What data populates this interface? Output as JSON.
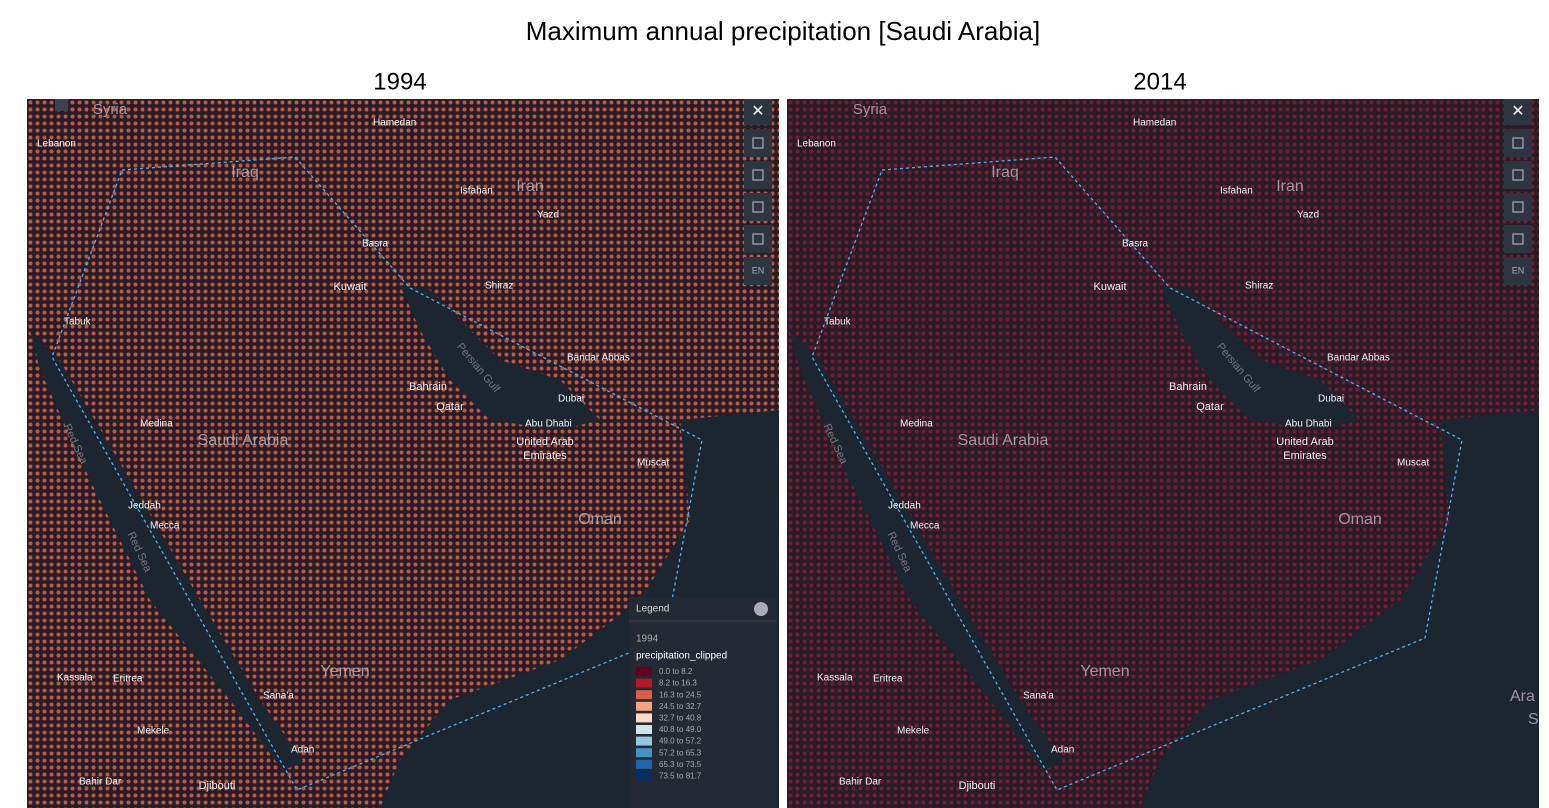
{
  "title": "Maximum annual precipitation [Saudi Arabia]",
  "panels": [
    {
      "year": "1994",
      "dots": "#b85a48"
    },
    {
      "year": "2014",
      "dots": "#6e1f33"
    }
  ],
  "places": [
    "Syria",
    "Hamedan",
    "Lebanon",
    "Iraq",
    "Isfahan",
    "Iran",
    "Yazd",
    "Basra",
    "Kuwait",
    "Shiraz",
    "Tabuk",
    "Persian Gulf",
    "Bandar Abbas",
    "Bahrain",
    "Qatar",
    "Dubai",
    "Medina",
    "Abu Dhabi",
    "Saudi Arabia",
    "United Arab",
    "Emirates",
    "Muscat",
    "Jeddah",
    "Oman",
    "Mecca",
    "Red Sea",
    "Red Sea",
    "Yemen",
    "Kassala",
    "Eritrea",
    "Sana'a",
    "Mekele",
    "Adan",
    "Bahir Dar",
    "Djibouti"
  ],
  "edge_labels": [
    "Ara",
    "S"
  ],
  "controls": {
    "close": "✕",
    "language": "EN"
  },
  "legend": {
    "title": "Legend",
    "layer": "1994",
    "field": "precipitation_clipped",
    "items": [
      {
        "label": "0.0 to 8.2",
        "color": "#67001f"
      },
      {
        "label": "8.2 to 16.3",
        "color": "#b2182b"
      },
      {
        "label": "16.3 to 24.5",
        "color": "#d6604d"
      },
      {
        "label": "24.5 to 32.7",
        "color": "#f4a582"
      },
      {
        "label": "32.7 to 40.8",
        "color": "#fddbc7"
      },
      {
        "label": "40.8 to 49.0",
        "color": "#d1e5f0"
      },
      {
        "label": "49.0 to 57.2",
        "color": "#92c5de"
      },
      {
        "label": "57.2 to 65.3",
        "color": "#4393c3"
      },
      {
        "label": "65.3 to 73.5",
        "color": "#2166ac"
      },
      {
        "label": "73.5 to 81.7",
        "color": "#053061"
      }
    ]
  }
}
